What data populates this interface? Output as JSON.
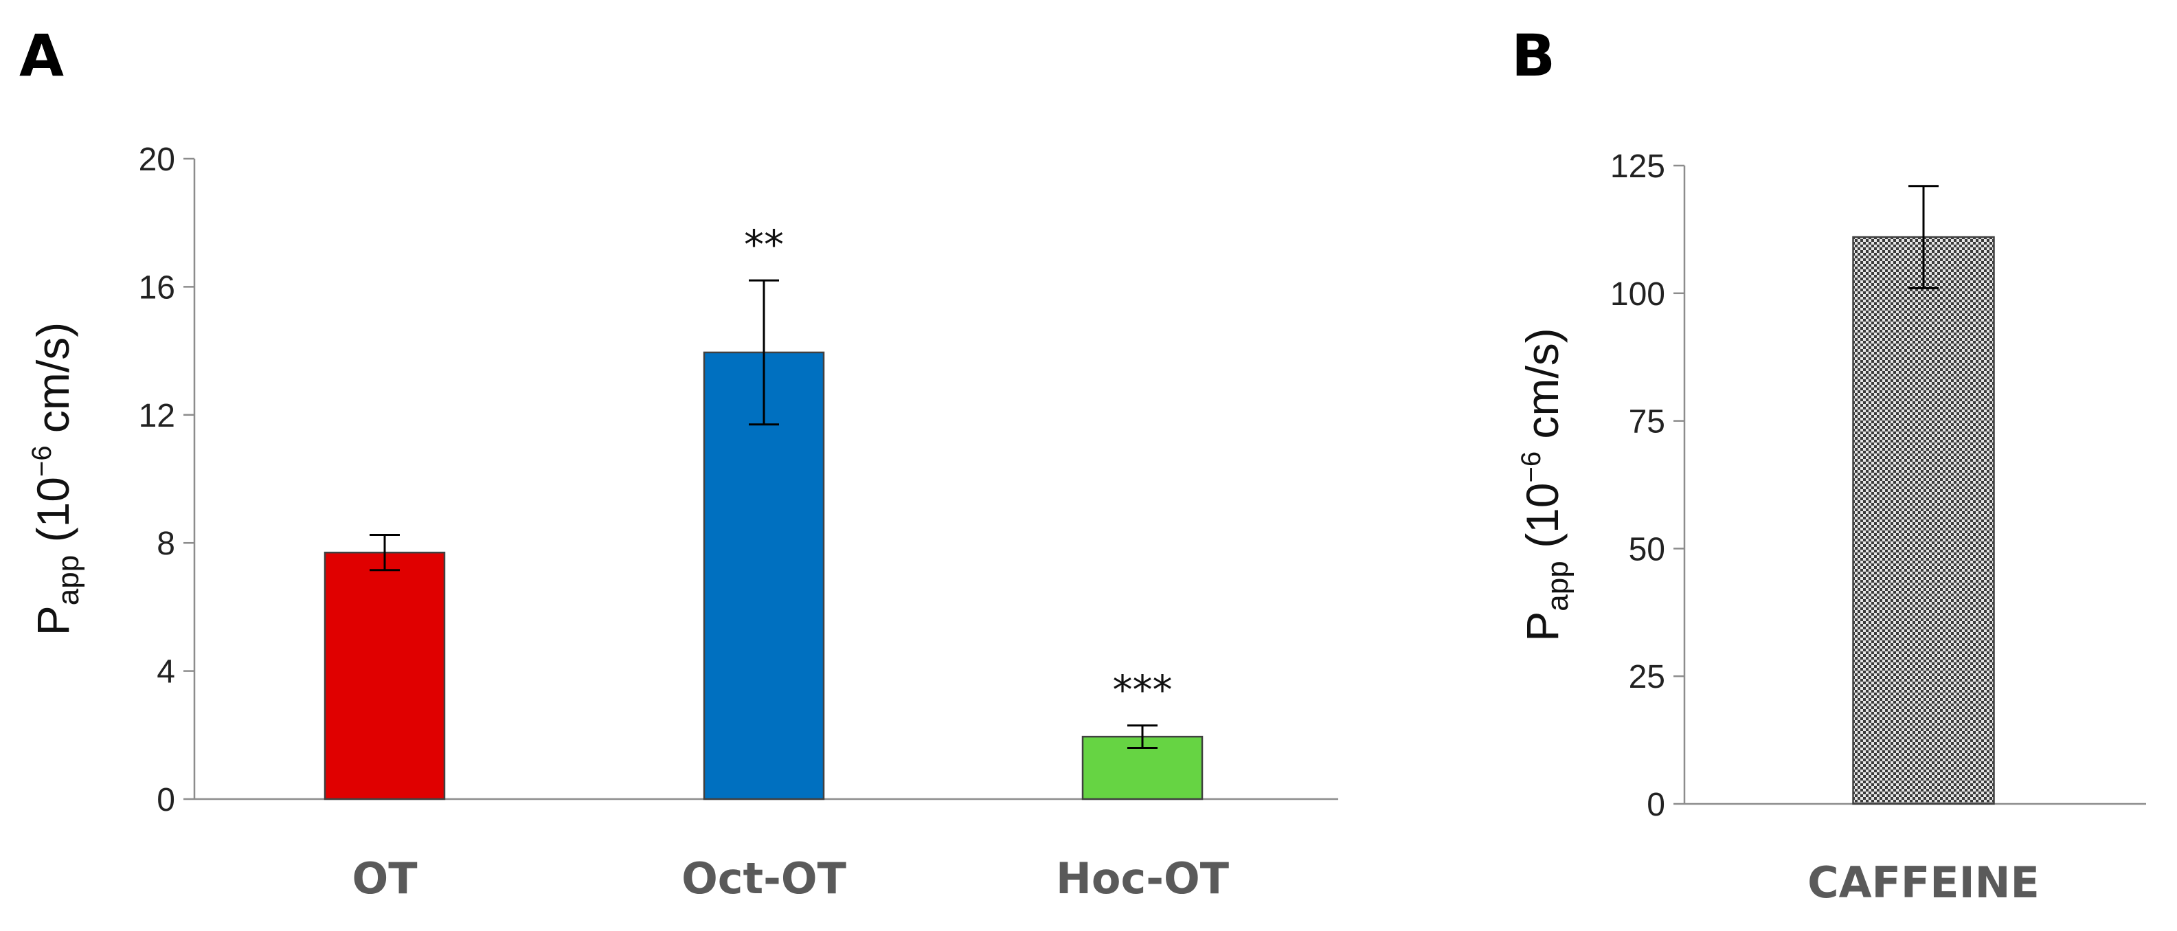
{
  "chart_data": [
    {
      "panel": "A",
      "type": "bar",
      "categories": [
        "OT",
        "Oct-OT",
        "Hoc-OT"
      ],
      "values": [
        7.7,
        13.95,
        1.95
      ],
      "errors": [
        0.55,
        2.25,
        0.35
      ],
      "significance": [
        "",
        "**",
        "***"
      ],
      "colors": [
        "#E00000",
        "#0070C0",
        "#66D443"
      ],
      "ylabel": {
        "base": "P",
        "sub": "app",
        "pre": " (10",
        "sup": "−6",
        "post": " cm/s)"
      },
      "ylim": [
        0,
        20
      ],
      "yticks": [
        0,
        4,
        8,
        12,
        16,
        20
      ],
      "grid": false
    },
    {
      "panel": "B",
      "type": "bar",
      "categories": [
        "CAFFEINE"
      ],
      "values": [
        111
      ],
      "errors": [
        10
      ],
      "significance": [
        ""
      ],
      "colors": [
        "#c8c8c8"
      ],
      "pattern": "checkered",
      "ylabel": {
        "base": "P",
        "sub": "app",
        "pre": " (10",
        "sup": "−6",
        "post": " cm/s)"
      },
      "ylim": [
        0,
        125
      ],
      "yticks": [
        0,
        25,
        50,
        75,
        100,
        125
      ],
      "grid": false
    }
  ]
}
